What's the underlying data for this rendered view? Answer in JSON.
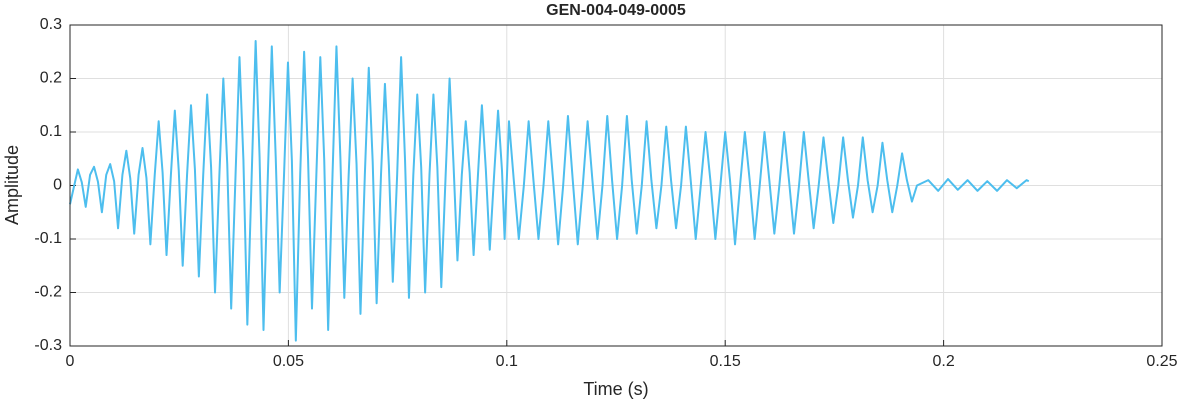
{
  "chart_data": {
    "type": "line",
    "title": "GEN-004-049-0005",
    "xlabel": "Time (s)",
    "ylabel": "Amplitude",
    "xlim": [
      0,
      0.25
    ],
    "xticks": [
      0,
      0.05,
      0.1,
      0.15,
      0.2,
      0.25
    ],
    "ylim": [
      -0.3,
      0.3
    ],
    "yticks": [
      -0.3,
      -0.2,
      -0.1,
      0,
      0.1,
      0.2,
      0.3
    ],
    "grid": true,
    "series": [
      {
        "color": "#4DBEEE",
        "x": [
          0,
          0.0018,
          0.0027,
          0.0036,
          0.0046,
          0.0055,
          0.0064,
          0.0073,
          0.0083,
          0.0092,
          0.0101,
          0.011,
          0.012,
          0.0129,
          0.0138,
          0.0147,
          0.0157,
          0.0166,
          0.0175,
          0.0184,
          0.0194,
          0.0203,
          0.0212,
          0.0221,
          0.0231,
          0.024,
          0.0249,
          0.0258,
          0.0268,
          0.0277,
          0.0286,
          0.0295,
          0.0305,
          0.0314,
          0.0323,
          0.0332,
          0.0342,
          0.0351,
          0.036,
          0.0369,
          0.0379,
          0.0388,
          0.0397,
          0.0406,
          0.0416,
          0.0425,
          0.0434,
          0.0443,
          0.0453,
          0.0462,
          0.0471,
          0.048,
          0.049,
          0.0499,
          0.0508,
          0.0517,
          0.0527,
          0.0536,
          0.0545,
          0.0554,
          0.0564,
          0.0573,
          0.0582,
          0.0591,
          0.0601,
          0.061,
          0.0619,
          0.0628,
          0.0638,
          0.0647,
          0.0656,
          0.0665,
          0.0675,
          0.0684,
          0.0693,
          0.0702,
          0.0712,
          0.0721,
          0.073,
          0.0739,
          0.0749,
          0.0758,
          0.0767,
          0.0776,
          0.0786,
          0.0795,
          0.0804,
          0.0813,
          0.0823,
          0.0832,
          0.0841,
          0.085,
          0.086,
          0.0869,
          0.0878,
          0.0887,
          0.0897,
          0.0906,
          0.0915,
          0.0924,
          0.0934,
          0.0943,
          0.0952,
          0.0961,
          0.0971,
          0.098,
          0.0989,
          0.0995,
          0.1005,
          0.1016,
          0.10275,
          0.1039,
          0.105,
          0.1061,
          0.10725,
          0.1084,
          0.1095,
          0.1106,
          0.11175,
          0.1129,
          0.114,
          0.1151,
          0.11625,
          0.1174,
          0.1185,
          0.1196,
          0.12075,
          0.1219,
          0.123,
          0.1241,
          0.12525,
          0.1264,
          0.1275,
          0.1286,
          0.12975,
          0.1309,
          0.132,
          0.1331,
          0.13425,
          0.1354,
          0.1365,
          0.1376,
          0.13875,
          0.1399,
          0.141,
          0.1421,
          0.14325,
          0.1444,
          0.1455,
          0.1466,
          0.14775,
          0.1489,
          0.15,
          0.1511,
          0.15225,
          0.1534,
          0.1545,
          0.1556,
          0.15675,
          0.1579,
          0.159,
          0.1601,
          0.16125,
          0.1624,
          0.1635,
          0.1646,
          0.16575,
          0.1669,
          0.168,
          0.1691,
          0.17025,
          0.1714,
          0.1725,
          0.1736,
          0.17475,
          0.1759,
          0.177,
          0.1781,
          0.17925,
          0.1804,
          0.1815,
          0.1826,
          0.18375,
          0.1849,
          0.186,
          0.1871,
          0.18825,
          0.1894,
          0.1905,
          0.1916,
          0.19275,
          0.1939,
          0.1965,
          0.19875,
          0.201,
          0.20325,
          0.2055,
          0.20775,
          0.21,
          0.21225,
          0.2145,
          0.21675,
          0.219,
          0.2195
        ],
        "values": [
          -0.035,
          0.03,
          0.006,
          -0.04,
          0.02,
          0.035,
          0.007,
          -0.05,
          0.02,
          0.04,
          0.008,
          -0.08,
          0.02,
          0.065,
          0.013,
          -0.09,
          0.02,
          0.07,
          0.014,
          -0.11,
          0.02,
          0.12,
          0.024,
          -0.13,
          0.02,
          0.14,
          0.028,
          -0.15,
          0.02,
          0.15,
          0.03,
          -0.17,
          0.02,
          0.17,
          0.034,
          -0.2,
          0.02,
          0.2,
          0.04,
          -0.23,
          0.02,
          0.24,
          0.048,
          -0.26,
          0.02,
          0.27,
          0.054,
          -0.27,
          0.02,
          0.26,
          0.052,
          -0.2,
          0.02,
          0.23,
          0.046,
          -0.29,
          0.02,
          0.25,
          0.05,
          -0.23,
          0.02,
          0.24,
          0.048,
          -0.27,
          0.02,
          0.26,
          0.052,
          -0.21,
          0.02,
          0.2,
          0.04,
          -0.24,
          0.02,
          0.22,
          0.044,
          -0.22,
          0.02,
          0.19,
          0.038,
          -0.18,
          0.02,
          0.24,
          0.048,
          -0.21,
          0.02,
          0.17,
          0.034,
          -0.2,
          0.02,
          0.17,
          0.034,
          -0.19,
          0.02,
          0.2,
          0.04,
          -0.14,
          0.02,
          0.12,
          0.024,
          -0.13,
          0.02,
          0.15,
          0.03,
          -0.12,
          0.02,
          0.14,
          0.028,
          -0.1,
          0.12,
          0.01,
          -0.1,
          0,
          0.12,
          0.01,
          -0.1,
          0,
          0.12,
          0.01,
          -0.11,
          0,
          0.13,
          0.01,
          -0.11,
          0,
          0.12,
          0.01,
          -0.1,
          0,
          0.13,
          0.01,
          -0.1,
          0,
          0.13,
          0.01,
          -0.09,
          0,
          0.12,
          0.01,
          -0.08,
          0,
          0.11,
          0.01,
          -0.08,
          0,
          0.11,
          0.01,
          -0.1,
          0,
          0.1,
          0.01,
          -0.1,
          0,
          0.1,
          0.01,
          -0.11,
          0,
          0.1,
          0.01,
          -0.1,
          0,
          0.1,
          0.01,
          -0.09,
          0,
          0.1,
          0.01,
          -0.09,
          0,
          0.1,
          0.01,
          -0.08,
          0,
          0.09,
          0.01,
          -0.07,
          0,
          0.09,
          0.01,
          -0.06,
          0,
          0.09,
          0.01,
          -0.05,
          0,
          0.08,
          0.01,
          -0.05,
          0,
          0.06,
          0.01,
          -0.03,
          0,
          0.01,
          -0.01,
          0.012,
          -0.008,
          0.01,
          -0.01,
          0.008,
          -0.01,
          0.01,
          -0.005,
          0.01,
          0.008
        ]
      }
    ]
  }
}
